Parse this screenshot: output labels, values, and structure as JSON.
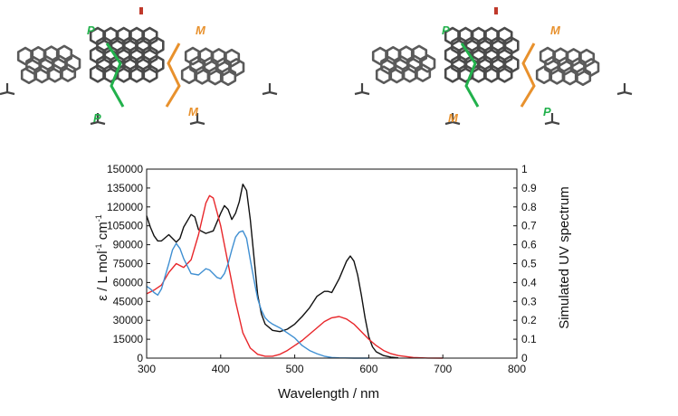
{
  "figure": {
    "molecules": [
      {
        "labels": [
          "P",
          "M",
          "P",
          "M"
        ]
      },
      {
        "labels": [
          "P",
          "M",
          "M",
          "P"
        ]
      }
    ],
    "label_colors": {
      "P": "#22b14c",
      "M": "#e8912d"
    }
  },
  "chart_data": {
    "type": "line",
    "xlabel": "Wavelength / nm",
    "ylabel_left_main": "ε / L mol",
    "ylabel_left_sup1": "-1",
    "ylabel_left_mid": " cm",
    "ylabel_left_sup2": "-1",
    "ylabel_right": "Simulated UV spectrum",
    "xlim": [
      300,
      800
    ],
    "ylim_left": [
      0,
      150000
    ],
    "ylim_right": [
      0,
      1
    ],
    "x_ticks": [
      "300",
      "400",
      "500",
      "600",
      "700",
      "800"
    ],
    "y_left_ticks": [
      "0",
      "15000",
      "30000",
      "45000",
      "60000",
      "75000",
      "90000",
      "105000",
      "120000",
      "135000",
      "150000"
    ],
    "y_right_ticks": [
      "0",
      "0.1",
      "0.2",
      "0.3",
      "0.4",
      "0.5",
      "0.6",
      "0.7",
      "0.8",
      "0.9",
      "1"
    ],
    "series": [
      {
        "color": "#111111",
        "axis": "left",
        "x": [
          300,
          305,
          310,
          315,
          320,
          330,
          340,
          345,
          350,
          360,
          365,
          370,
          380,
          390,
          400,
          405,
          410,
          415,
          420,
          425,
          430,
          435,
          440,
          445,
          450,
          455,
          460,
          470,
          480,
          490,
          500,
          510,
          520,
          530,
          540,
          545,
          550,
          560,
          570,
          575,
          580,
          585,
          590,
          595,
          600,
          605,
          610,
          620,
          630,
          640
        ],
        "y": [
          113000,
          104000,
          97000,
          93000,
          93000,
          98000,
          92000,
          95000,
          104000,
          114000,
          112000,
          102000,
          99000,
          101000,
          115000,
          121000,
          118000,
          110000,
          115000,
          124000,
          138000,
          133000,
          110000,
          80000,
          50000,
          35000,
          27000,
          22000,
          21000,
          23000,
          27000,
          33000,
          40000,
          49000,
          53000,
          53000,
          52000,
          63000,
          77000,
          81000,
          77000,
          66000,
          50000,
          32000,
          17000,
          9000,
          5000,
          2000,
          800,
          200
        ]
      },
      {
        "color": "#e8262a",
        "axis": "left",
        "x": [
          300,
          310,
          320,
          330,
          340,
          350,
          360,
          370,
          380,
          385,
          390,
          400,
          410,
          420,
          430,
          440,
          450,
          460,
          470,
          480,
          490,
          500,
          510,
          520,
          530,
          540,
          550,
          560,
          570,
          580,
          590,
          600,
          610,
          620,
          630,
          640,
          660,
          680,
          700
        ],
        "y": [
          51000,
          54000,
          58000,
          68000,
          75000,
          72000,
          78000,
          98000,
          123000,
          129000,
          127000,
          105000,
          75000,
          45000,
          20000,
          8000,
          3000,
          1500,
          1500,
          3000,
          6000,
          10000,
          14000,
          19000,
          24000,
          29000,
          32000,
          33000,
          31000,
          27000,
          21000,
          15000,
          10000,
          6000,
          3500,
          2000,
          500,
          100,
          0
        ]
      },
      {
        "color": "#3f8fd2",
        "axis": "left",
        "x": [
          300,
          305,
          310,
          315,
          320,
          325,
          330,
          335,
          340,
          345,
          350,
          360,
          370,
          380,
          385,
          390,
          395,
          400,
          405,
          410,
          415,
          420,
          425,
          430,
          435,
          440,
          445,
          450,
          455,
          460,
          465,
          470,
          480,
          490,
          500,
          510,
          520,
          530,
          540,
          550,
          560,
          580,
          600
        ],
        "y": [
          57000,
          55000,
          52000,
          50000,
          55000,
          65000,
          75000,
          86000,
          91000,
          87000,
          79000,
          67000,
          66000,
          71000,
          70000,
          67000,
          64000,
          63000,
          67000,
          75000,
          86000,
          96000,
          100000,
          101000,
          95000,
          78000,
          62000,
          47000,
          38000,
          32000,
          29000,
          27000,
          24000,
          20000,
          16000,
          10000,
          6000,
          3500,
          1500,
          500,
          200,
          0,
          0
        ]
      }
    ]
  }
}
